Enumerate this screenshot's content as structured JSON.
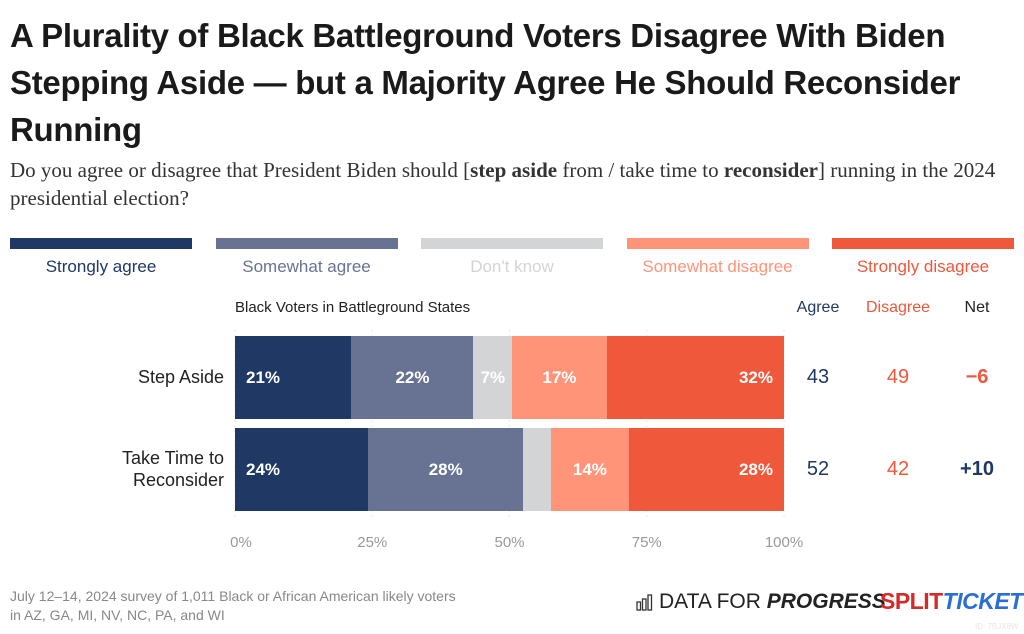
{
  "title": "A Plurality of Black Battleground Voters Disagree With Biden Stepping Aside — but a Majority Agree He Should Reconsider Running",
  "subtitle_parts": [
    "Do you agree or disagree that President Biden should [",
    "step aside",
    " from / take time to ",
    "reconsider",
    "] running in the 2024 presidential election?"
  ],
  "footnote": [
    "July 12–14, 2024 survey of 1,011 Black or African American likely voters",
    "in AZ, GA, MI, NV, NC, PA, and WI"
  ],
  "logos": {
    "dfp_plain": "DATA FOR ",
    "dfp_bold": "PROGRESS",
    "split": "SPLIT",
    "ticket": "TICKET"
  },
  "image_id": "ID: 7BJX8W",
  "chart_data": {
    "type": "bar",
    "orientation": "horizontal",
    "stacked": true,
    "group_label": "Black Voters in Battleground States",
    "categories": [
      "Step Aside",
      "Take Time to Reconsider"
    ],
    "series": [
      {
        "name": "Strongly agree",
        "color": "#1f3864",
        "values": [
          21,
          24
        ],
        "labels": [
          "21%",
          "24%"
        ]
      },
      {
        "name": "Somewhat agree",
        "color": "#687293",
        "values": [
          22,
          28
        ],
        "labels": [
          "22%",
          "28%"
        ]
      },
      {
        "name": "Don't know",
        "color": "#d3d4d6",
        "values": [
          7,
          5
        ],
        "labels": [
          "7%",
          ""
        ]
      },
      {
        "name": "Somewhat disagree",
        "color": "#ff9478",
        "values": [
          17,
          14
        ],
        "labels": [
          "17%",
          "14%"
        ]
      },
      {
        "name": "Strongly disagree",
        "color": "#f0583b",
        "values": [
          32,
          28
        ],
        "labels": [
          "32%",
          "28%"
        ]
      }
    ],
    "summary_headers": [
      {
        "label": "Agree",
        "color": "#1f3864"
      },
      {
        "label": "Disagree",
        "color": "#f0583b"
      },
      {
        "label": "Net",
        "color": "#222222"
      }
    ],
    "summary": [
      {
        "agree": "43",
        "disagree": "49",
        "net": "−6",
        "net_color": "#f0583b"
      },
      {
        "agree": "52",
        "disagree": "42",
        "net": "+10",
        "net_color": "#1f3864"
      }
    ],
    "xlim": [
      0,
      100
    ],
    "xticks": [
      "0%",
      "25%",
      "50%",
      "75%",
      "100%"
    ],
    "grid": true,
    "legend_position": "top"
  }
}
